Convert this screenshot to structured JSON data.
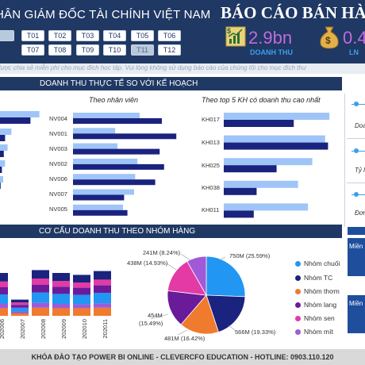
{
  "header": {
    "title": "HÂN GIÁM ĐỐC TÀI CHÍNH VIỆT NAM",
    "report_title": "BÁO CÁO BÁN HÀ",
    "months": [
      "T01",
      "T02",
      "T03",
      "T04",
      "T05",
      "T06",
      "T07",
      "T08",
      "T09",
      "T10",
      "T11",
      "T12"
    ],
    "selected_month": "T11",
    "kpis": [
      {
        "value": "2.9bn",
        "label": "DOANH THU",
        "icon": "revenue-chart-icon"
      },
      {
        "value": "0.4",
        "label": "LN",
        "icon": "money-bag-icon"
      }
    ]
  },
  "note": "dược chia sẻ miễn phí cho mục đích học tập. Vui lòng không sử dụng báo cáo của chúng tôi cho mục đích thư",
  "sections": {
    "revenue_vs_plan": "DOANH THU THỰC TẾ SO VỚI KẾ HOẠCH",
    "revenue_structure": "CƠ CẤU DOANH THU THEO NHÓM HÀNG"
  },
  "right_panel": {
    "labels": [
      "Doa",
      "Tỷ lệ",
      "Đơn"
    ],
    "low_labels": [
      "Miền",
      "Miền"
    ]
  },
  "footer": "KHÓA ĐÀO TẠO POWER BI ONLINE - CLEVERCFO EDUCATION - HOTLINE: 0903.110.120",
  "colors": {
    "navy": "#1f3864",
    "plan": "#9fc5f8",
    "actual": "#1a237e",
    "kpi_value": "#c06bdc",
    "kpi_label": "#3aa0e8"
  },
  "chart_data": [
    {
      "type": "bar",
      "orientation": "horizontal",
      "title": "",
      "series": [
        {
          "values": [
            0.62,
            0.18,
            0.12,
            0.08,
            0.05
          ]
        },
        {
          "values": [
            0.48,
            0.08,
            0.06,
            0.03,
            0.01
          ]
        }
      ]
    },
    {
      "type": "bar",
      "orientation": "horizontal",
      "title": "Theo nhân viên",
      "categories": [
        "NV004",
        "NV001",
        "NV003",
        "NV002",
        "NV006",
        "NV007",
        "NV005"
      ],
      "series": [
        {
          "values": [
            0.6,
            0.38,
            0.4,
            0.58,
            0.56,
            0.55,
            0.45
          ]
        },
        {
          "values": [
            0.8,
            0.93,
            0.78,
            0.82,
            0.74,
            0.46,
            0.49
          ]
        }
      ],
      "ylim": [
        0,
        1
      ]
    },
    {
      "type": "bar",
      "orientation": "horizontal",
      "title": "Theo top 5 KH có doanh thu cao nhất",
      "categories": [
        "KH017",
        "KH013",
        "KH025",
        "KH038",
        "KH011"
      ],
      "series": [
        {
          "values": [
            0.74,
            0.71,
            0.62,
            0.52,
            0.59
          ]
        },
        {
          "values": [
            0.49,
            0.73,
            0.37,
            0.23,
            0.21
          ]
        }
      ],
      "ylim": [
        0,
        1
      ]
    },
    {
      "type": "bar",
      "stacked": true,
      "title": "",
      "categories": [
        "202006",
        "202007",
        "202008",
        "202009",
        "202010",
        "202011"
      ],
      "series": [
        {
          "name": "Nhóm chuối",
          "values": [
            20,
            8,
            22,
            21,
            20,
            22
          ]
        },
        {
          "name": "Nhóm TC",
          "values": [
            18,
            6,
            18,
            17,
            16,
            18
          ]
        },
        {
          "name": "Nhóm thơm",
          "values": [
            16,
            5,
            17,
            16,
            16,
            17
          ]
        },
        {
          "name": "Nhóm lang",
          "values": [
            15,
            6,
            16,
            15,
            15,
            16
          ]
        },
        {
          "name": "Nhóm sen",
          "values": [
            12,
            5,
            13,
            12,
            11,
            12
          ]
        },
        {
          "name": "Nhóm mít",
          "values": [
            9,
            4,
            10,
            9,
            8,
            9
          ]
        }
      ]
    },
    {
      "type": "pie",
      "title": "",
      "slices": [
        {
          "name": "Nhóm chuối",
          "value": 750,
          "label": "750M (25.59%)"
        },
        {
          "name": "Nhóm TC",
          "value": 566,
          "label": "566M (19.33%)"
        },
        {
          "name": "Nhóm thơm",
          "value": 481,
          "label": "481M (16.42%)"
        },
        {
          "name": "Nhóm lang",
          "value": 454,
          "label": "454M (15.49%)"
        },
        {
          "name": "Nhóm sen",
          "value": 438,
          "label": "438M (14.93%)"
        },
        {
          "name": "Nhóm mít",
          "value": 241,
          "label": "241M (8.24%)"
        }
      ]
    }
  ],
  "legend_colors": [
    "#2196f3",
    "#1a237e",
    "#f07a2e",
    "#6a1b9a",
    "#e33aa6",
    "#a05ad8"
  ]
}
